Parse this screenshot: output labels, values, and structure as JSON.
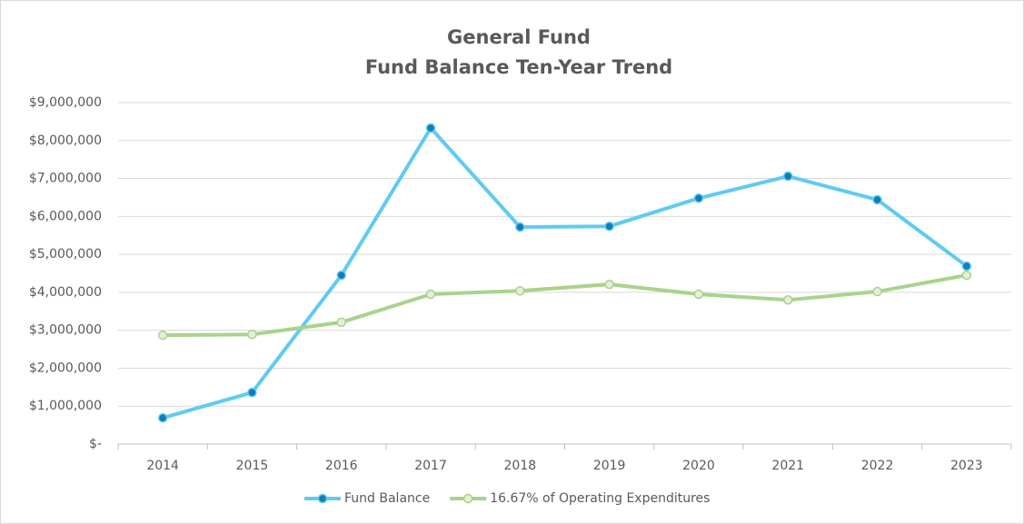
{
  "chart_data": {
    "type": "line",
    "title": [
      "General Fund",
      "Fund Balance Ten-Year Trend"
    ],
    "categories": [
      "2014",
      "2015",
      "2016",
      "2017",
      "2018",
      "2019",
      "2020",
      "2021",
      "2022",
      "2023"
    ],
    "series": [
      {
        "name": "Fund Balance",
        "color": "#5ecbf3",
        "marker_color": "#0f7db8",
        "values": [
          690000,
          1360000,
          4450000,
          8330000,
          5720000,
          5740000,
          6480000,
          7060000,
          6440000,
          4690000
        ]
      },
      {
        "name": "16.67% of Operating Expenditures",
        "color": "#a9d38c",
        "marker_color": "#e3efd8",
        "values": [
          2870000,
          2890000,
          3210000,
          3950000,
          4040000,
          4210000,
          3950000,
          3800000,
          4020000,
          4450000
        ]
      }
    ],
    "ylim": [
      0,
      9000000
    ],
    "yticks": [
      {
        "value": 0,
        "label": "$-"
      },
      {
        "value": 1000000,
        "label": "$1,000,000"
      },
      {
        "value": 2000000,
        "label": "$2,000,000"
      },
      {
        "value": 3000000,
        "label": "$3,000,000"
      },
      {
        "value": 4000000,
        "label": "$4,000,000"
      },
      {
        "value": 5000000,
        "label": "$5,000,000"
      },
      {
        "value": 6000000,
        "label": "$6,000,000"
      },
      {
        "value": 7000000,
        "label": "$7,000,000"
      },
      {
        "value": 8000000,
        "label": "$8,000,000"
      },
      {
        "value": 9000000,
        "label": "$9,000,000"
      }
    ],
    "grid": true,
    "legend": "bottom"
  }
}
